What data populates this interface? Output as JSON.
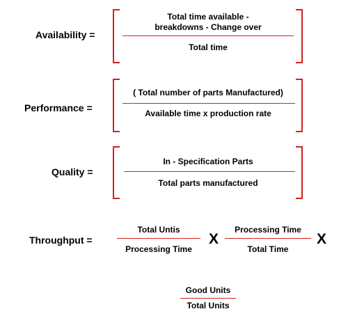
{
  "colors": {
    "fraction_line": "#d42020",
    "bracket": "#d42020",
    "text": "#000000"
  },
  "availability": {
    "label": "Availability =",
    "numerator_line1": "Total time available -",
    "numerator_line2": "breakdowns - Change over",
    "denominator": "Total time"
  },
  "performance": {
    "label": "Performance =",
    "numerator": "( Total number of parts Manufactured)",
    "denominator": "Available time x production rate"
  },
  "quality": {
    "label": "Quality =",
    "numerator": "In - Specification Parts",
    "denominator": "Total parts manufactured"
  },
  "throughput": {
    "label": "Throughput =",
    "frac1_numerator": "Total Untis",
    "frac1_denominator": "Processing Time",
    "operator1": "X",
    "frac2_numerator": "Processing Time",
    "frac2_denominator": "Total Time",
    "operator2": "X"
  },
  "units_fraction": {
    "numerator": "Good Units",
    "denominator": "Total Units"
  }
}
